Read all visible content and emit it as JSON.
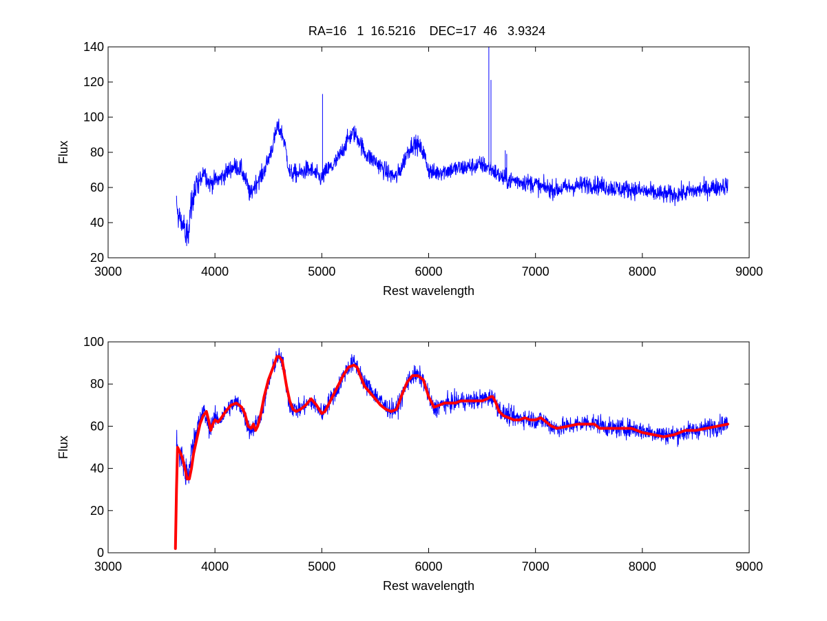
{
  "figure": {
    "title": "RA=16   1  16.5216    DEC=17  46   3.9324"
  },
  "chart_data": [
    {
      "type": "line",
      "title": "RA=16   1  16.5216    DEC=17  46   3.9324",
      "xlabel": "Rest wavelength",
      "ylabel": "Flux",
      "xlim": [
        3000,
        9000
      ],
      "ylim": [
        20,
        140
      ],
      "xticks": [
        3000,
        4000,
        5000,
        6000,
        7000,
        8000,
        9000
      ],
      "yticks": [
        20,
        40,
        60,
        80,
        100,
        120,
        140
      ],
      "grid": false,
      "series": [
        {
          "color": "#0000ff",
          "linewidth": 1,
          "noise": 2.6,
          "x": [
            3640,
            3650,
            3670,
            3700,
            3730,
            3750,
            3760,
            3780,
            3800,
            3830,
            3860,
            3880,
            3900,
            3920,
            3950,
            3980,
            4000,
            4050,
            4100,
            4150,
            4200,
            4250,
            4300,
            4330,
            4360,
            4400,
            4450,
            4500,
            4530,
            4560,
            4580,
            4620,
            4650,
            4680,
            4700,
            4750,
            4800,
            4850,
            4900,
            4950,
            5000,
            5050,
            5100,
            5150,
            5200,
            5250,
            5300,
            5350,
            5400,
            5450,
            5500,
            5550,
            5600,
            5650,
            5700,
            5750,
            5800,
            5850,
            5900,
            5950,
            6000,
            6050,
            6100,
            6200,
            6300,
            6400,
            6500,
            6540,
            6600,
            6650,
            6700,
            6750,
            6800,
            6900,
            7000,
            7050,
            7100,
            7150,
            7200,
            7300,
            7400,
            7500,
            7600,
            7700,
            7800,
            7900,
            8000,
            8100,
            8200,
            8300,
            8400,
            8450,
            8500,
            8550,
            8600,
            8650,
            8700,
            8750,
            8800
          ],
          "y": [
            50,
            45,
            42,
            38,
            32,
            34,
            42,
            50,
            55,
            60,
            64,
            68,
            70,
            66,
            62,
            63,
            64,
            65,
            68,
            71,
            72,
            70,
            62,
            55,
            60,
            64,
            68,
            76,
            82,
            88,
            94,
            92,
            86,
            75,
            68,
            68,
            68,
            70,
            70,
            67,
            65,
            70,
            72,
            76,
            82,
            88,
            91,
            87,
            80,
            77,
            75,
            72,
            69,
            67,
            66,
            72,
            80,
            85,
            84,
            80,
            70,
            68,
            69,
            70,
            71,
            72,
            73,
            72,
            70,
            67,
            65,
            64,
            64,
            63,
            62,
            60,
            60,
            59,
            59,
            60,
            61,
            62,
            61,
            60,
            59,
            59,
            58,
            57,
            56,
            56,
            57,
            58,
            58,
            59,
            59,
            60,
            60,
            61,
            61
          ]
        },
        {
          "color": "#0000ff",
          "linewidth": 1,
          "kind": "emission-lines",
          "x": [
            5007,
            6563,
            6583,
            6717,
            6731
          ],
          "y": [
            113,
            140,
            121,
            81,
            79
          ]
        }
      ]
    },
    {
      "type": "line",
      "title": "",
      "xlabel": "Rest wavelength",
      "ylabel": "Flux",
      "xlim": [
        3000,
        9000
      ],
      "ylim": [
        0,
        100
      ],
      "xticks": [
        3000,
        4000,
        5000,
        6000,
        7000,
        8000,
        9000
      ],
      "yticks": [
        0,
        20,
        40,
        60,
        80,
        100
      ],
      "grid": false,
      "series": [
        {
          "color": "#0000ff",
          "linewidth": 1,
          "noise": 2.2,
          "x": [
            3640,
            3650,
            3670,
            3700,
            3730,
            3750,
            3760,
            3780,
            3800,
            3830,
            3860,
            3880,
            3900,
            3920,
            3950,
            3980,
            4000,
            4050,
            4100,
            4150,
            4200,
            4250,
            4300,
            4330,
            4360,
            4400,
            4450,
            4500,
            4530,
            4560,
            4580,
            4620,
            4650,
            4680,
            4700,
            4750,
            4800,
            4850,
            4900,
            4950,
            5000,
            5050,
            5100,
            5150,
            5200,
            5250,
            5300,
            5350,
            5400,
            5450,
            5500,
            5550,
            5600,
            5650,
            5700,
            5750,
            5800,
            5850,
            5900,
            5950,
            6000,
            6050,
            6100,
            6200,
            6300,
            6400,
            6500,
            6540,
            6600,
            6650,
            6700,
            6750,
            6800,
            6900,
            7000,
            7050,
            7100,
            7150,
            7200,
            7300,
            7400,
            7500,
            7600,
            7700,
            7800,
            7900,
            8000,
            8100,
            8200,
            8300,
            8400,
            8450,
            8500,
            8550,
            8600,
            8650,
            8700,
            8750,
            8800
          ],
          "y": [
            50,
            49,
            47,
            43,
            36,
            35,
            40,
            48,
            53,
            58,
            62,
            66,
            67,
            63,
            59,
            62,
            64,
            63,
            67,
            70,
            71,
            69,
            61,
            58,
            59,
            62,
            69,
            80,
            85,
            90,
            93,
            92,
            86,
            75,
            70,
            68,
            68,
            70,
            72,
            69,
            66,
            70,
            74,
            78,
            84,
            88,
            90,
            87,
            80,
            78,
            75,
            72,
            69,
            68,
            68,
            74,
            81,
            84,
            84,
            82,
            74,
            68,
            70,
            71,
            72,
            72,
            73,
            73,
            74,
            69,
            66,
            65,
            64,
            64,
            63,
            63,
            62,
            60,
            59,
            60,
            61,
            62,
            61,
            59,
            59,
            59,
            58,
            57,
            56,
            56,
            57,
            58,
            58,
            59,
            59,
            60,
            60,
            61,
            61
          ]
        },
        {
          "color": "#ff0000",
          "linewidth": 4,
          "x": [
            3630,
            3640,
            3650,
            3660,
            3680,
            3700,
            3720,
            3740,
            3760,
            3780,
            3800,
            3830,
            3860,
            3890,
            3920,
            3940,
            3960,
            3980,
            4000,
            4030,
            4060,
            4100,
            4150,
            4200,
            4250,
            4280,
            4310,
            4340,
            4360,
            4380,
            4400,
            4430,
            4460,
            4500,
            4530,
            4560,
            4580,
            4600,
            4630,
            4650,
            4670,
            4700,
            4730,
            4760,
            4800,
            4850,
            4900,
            4950,
            5000,
            5030,
            5060,
            5100,
            5150,
            5200,
            5250,
            5300,
            5330,
            5360,
            5400,
            5450,
            5500,
            5550,
            5600,
            5650,
            5700,
            5750,
            5800,
            5850,
            5900,
            5950,
            6000,
            6050,
            6100,
            6150,
            6200,
            6250,
            6300,
            6400,
            6500,
            6550,
            6580,
            6600,
            6630,
            6660,
            6700,
            6750,
            6800,
            6850,
            6900,
            6950,
            7000,
            7050,
            7100,
            7150,
            7200,
            7300,
            7400,
            7500,
            7550,
            7600,
            7650,
            7700,
            7800,
            7900,
            8000,
            8100,
            8200,
            8300,
            8400,
            8500,
            8600,
            8700,
            8800
          ],
          "y": [
            2,
            30,
            50,
            49,
            47,
            44,
            40,
            35,
            35,
            40,
            47,
            54,
            61,
            65,
            67,
            63,
            58,
            61,
            63,
            62,
            64,
            67,
            70,
            71,
            69,
            66,
            60,
            59,
            61,
            58,
            60,
            66,
            74,
            82,
            86,
            90,
            93,
            93,
            91,
            85,
            79,
            72,
            68,
            67,
            68,
            70,
            73,
            70,
            66,
            67,
            70,
            74,
            79,
            84,
            88,
            89,
            88,
            84,
            79,
            76,
            73,
            70,
            68,
            67,
            68,
            75,
            81,
            84,
            84,
            82,
            74,
            69,
            70,
            71,
            71,
            71,
            72,
            72,
            72,
            73,
            74,
            74,
            71,
            67,
            65,
            64,
            63,
            63,
            64,
            63,
            63,
            64,
            62,
            60,
            59,
            60,
            61,
            61,
            61,
            59,
            59,
            59,
            59,
            59,
            57,
            56,
            55,
            56,
            58,
            58,
            59,
            60,
            61
          ]
        }
      ]
    }
  ]
}
